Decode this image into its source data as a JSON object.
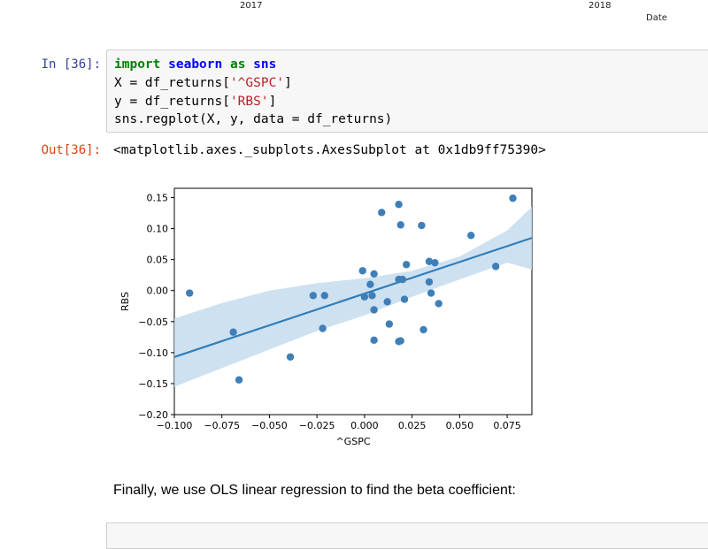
{
  "previous_output": {
    "tick_2017": "2017",
    "tick_2018": "2018",
    "date_label": "Date"
  },
  "cell_in": {
    "prompt": "In [36]:",
    "lines": {
      "l1": {
        "kw": "import",
        "mod1": "seaborn",
        "kw2": "as",
        "mod2": "sns"
      },
      "l2": "X = df_returns[",
      "l2_str": "'^GSPC'",
      "l2_end": "]",
      "l3": "y = df_returns[",
      "l3_str": "'RBS'",
      "l3_end": "]",
      "l4": "sns.regplot(X, y, data = df_returns)"
    }
  },
  "cell_out": {
    "prompt": "Out[36]:",
    "text": "<matplotlib.axes._subplots.AxesSubplot at 0x1db9ff75390>"
  },
  "markdown": {
    "text": "Finally, we use OLS linear regression to find the beta coefficient:"
  },
  "chart_data": {
    "type": "scatter",
    "xlabel": "^GSPC",
    "ylabel": "RBS",
    "xlim": [
      -0.1,
      0.088
    ],
    "ylim": [
      -0.2,
      0.165
    ],
    "xticks": [
      -0.1,
      -0.075,
      -0.05,
      -0.025,
      0.0,
      0.025,
      0.05,
      0.075
    ],
    "xtick_labels": [
      "−0.100",
      "−0.075",
      "−0.050",
      "−0.025",
      "0.000",
      "0.025",
      "0.050",
      "0.075"
    ],
    "yticks": [
      0.15,
      0.1,
      0.05,
      0.0,
      -0.05,
      -0.1,
      -0.15,
      -0.2
    ],
    "ytick_labels": [
      "0.15",
      "0.10",
      "0.05",
      "0.00",
      "−0.05",
      "−0.10",
      "−0.15",
      "−0.20"
    ],
    "point_color": "#3f7fb8",
    "line_color": "#2f7ebc",
    "band_color": "#c6dcef",
    "points": [
      [
        -0.092,
        -0.004
      ],
      [
        -0.069,
        -0.067
      ],
      [
        -0.066,
        -0.144
      ],
      [
        -0.039,
        -0.107
      ],
      [
        -0.027,
        -0.008
      ],
      [
        -0.021,
        -0.008
      ],
      [
        -0.022,
        -0.061
      ],
      [
        -0.001,
        0.032
      ],
      [
        0.0,
        -0.01
      ],
      [
        0.003,
        0.01
      ],
      [
        0.004,
        -0.008
      ],
      [
        0.005,
        0.027
      ],
      [
        0.005,
        -0.031
      ],
      [
        0.005,
        -0.08
      ],
      [
        0.009,
        0.126
      ],
      [
        0.012,
        -0.018
      ],
      [
        0.013,
        -0.054
      ],
      [
        0.018,
        0.139
      ],
      [
        0.018,
        0.018
      ],
      [
        0.018,
        -0.082
      ],
      [
        0.019,
        -0.081
      ],
      [
        0.019,
        0.106
      ],
      [
        0.02,
        0.018
      ],
      [
        0.021,
        -0.014
      ],
      [
        0.022,
        0.042
      ],
      [
        0.03,
        0.105
      ],
      [
        0.031,
        -0.063
      ],
      [
        0.034,
        0.047
      ],
      [
        0.034,
        0.014
      ],
      [
        0.035,
        -0.004
      ],
      [
        0.037,
        0.045
      ],
      [
        0.039,
        -0.021
      ],
      [
        0.056,
        0.089
      ],
      [
        0.069,
        0.039
      ],
      [
        0.078,
        0.149
      ]
    ],
    "regression": {
      "x0": -0.1,
      "y0": -0.107,
      "x1": 0.088,
      "y1": 0.085
    },
    "confidence_band": {
      "x": [
        -0.1,
        -0.075,
        -0.05,
        -0.025,
        0.0,
        0.025,
        0.05,
        0.075,
        0.088
      ],
      "upper": [
        -0.045,
        -0.02,
        0.0,
        0.012,
        0.02,
        0.032,
        0.055,
        0.097,
        0.135
      ],
      "lower": [
        -0.155,
        -0.125,
        -0.095,
        -0.065,
        -0.04,
        -0.01,
        0.018,
        0.045,
        0.034
      ]
    }
  }
}
